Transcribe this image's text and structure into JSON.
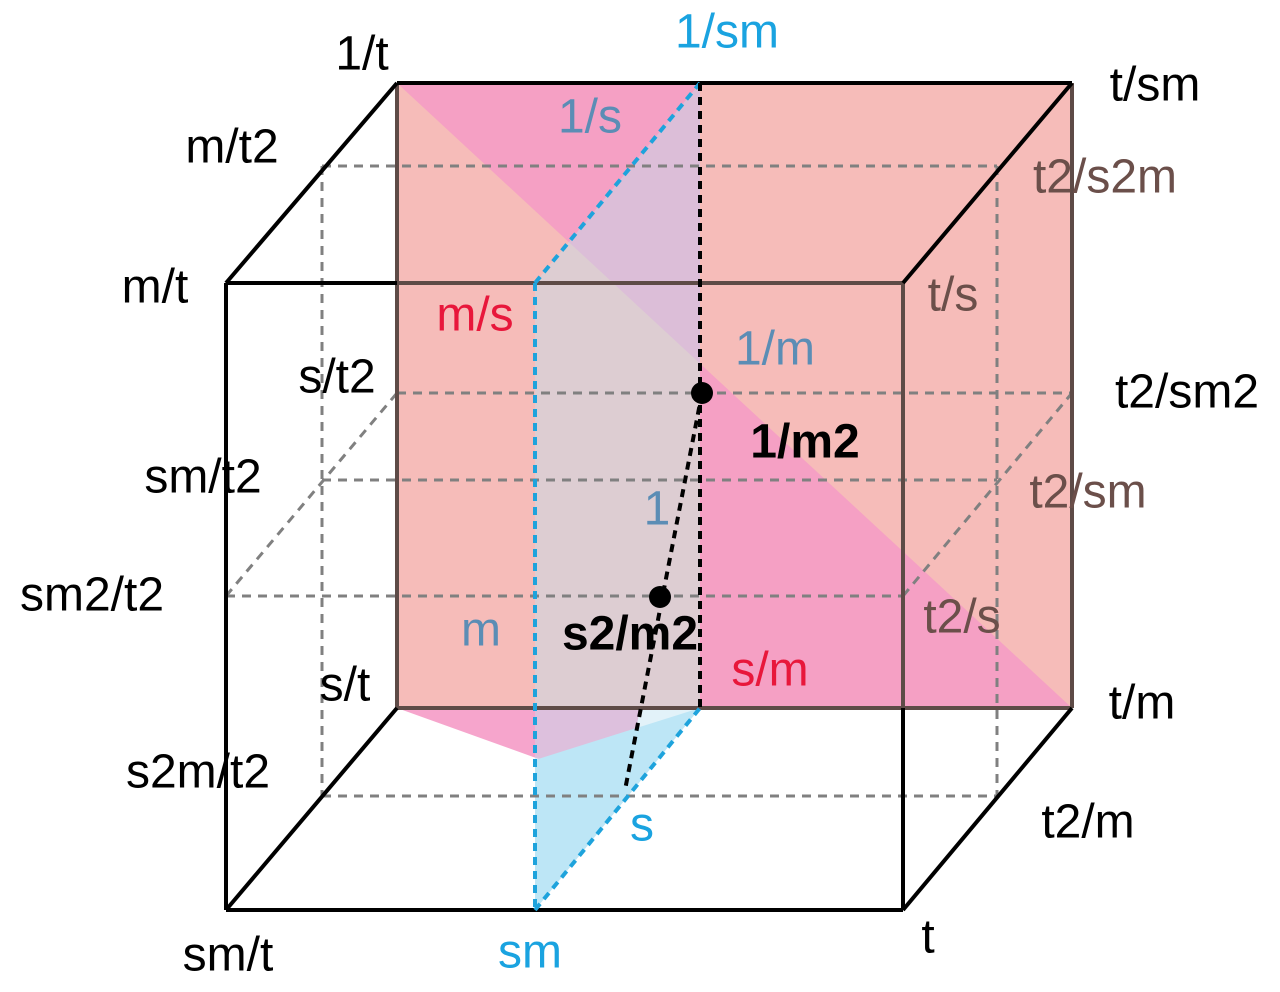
{
  "labels": [
    "1/t",
    "1/sm",
    "t/sm",
    "m/t2",
    "t2/s2m",
    "1/s",
    "m/t",
    "t/s",
    "m/s",
    "1/m",
    "s/t2",
    "t2/sm2",
    "1/m2",
    "sm/t2",
    "t2/sm",
    "1",
    "sm2/t2",
    "t2/s",
    "m",
    "s2/m2",
    "s/m",
    "s/t",
    "t/m",
    "s2m/t2",
    "t2/m",
    "s",
    "t",
    "sm/t",
    "sm"
  ]
}
